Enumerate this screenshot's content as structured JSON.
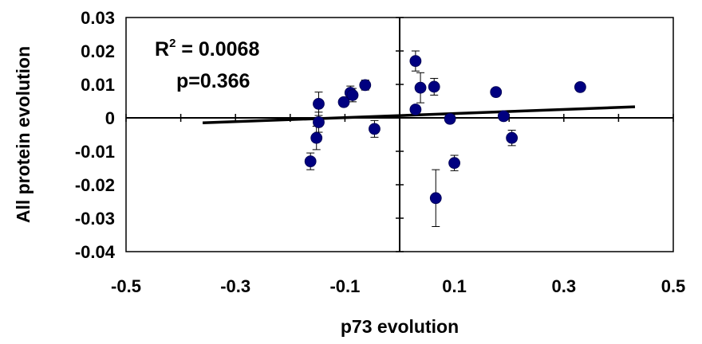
{
  "chart_data": {
    "type": "scatter",
    "xlabel": "p73 evolution",
    "ylabel": "All protein evolution",
    "xlim": [
      -0.5,
      0.5
    ],
    "ylim": [
      -0.04,
      0.03
    ],
    "x_ticks": [
      "-0.5",
      "-0.3",
      "-0.1",
      "0.1",
      "0.3",
      "0.5"
    ],
    "y_ticks": [
      "0.03",
      "0.02",
      "0.01",
      "0",
      "-0.01",
      "-0.02",
      "-0.03",
      "-0.04"
    ],
    "x_tick_values": [
      -0.5,
      -0.3,
      -0.1,
      0.1,
      0.3,
      0.5
    ],
    "y_tick_values": [
      0.03,
      0.02,
      0.01,
      0,
      -0.01,
      -0.02,
      -0.03,
      -0.04
    ],
    "annotation_r2_prefix": "R",
    "annotation_r2_sup": "2",
    "annotation_r2_value": " = 0.0068",
    "annotation_p": "p=0.366",
    "grid": false,
    "point_color": "#000080",
    "trendline": {
      "x": [
        -0.36,
        0.43
      ],
      "y": [
        -0.0015,
        0.0033
      ]
    },
    "points": [
      {
        "x": -0.163,
        "y": -0.013,
        "err": 0.0025
      },
      {
        "x": -0.152,
        "y": -0.006,
        "err": 0.0035
      },
      {
        "x": -0.148,
        "y": 0.0042,
        "err": 0.0035
      },
      {
        "x": -0.148,
        "y": -0.0013,
        "err": 0.003
      },
      {
        "x": -0.102,
        "y": 0.0047,
        "err": 0.0012
      },
      {
        "x": -0.09,
        "y": 0.0075,
        "err": 0.002
      },
      {
        "x": -0.086,
        "y": 0.0068,
        "err": 0.002
      },
      {
        "x": -0.063,
        "y": 0.0098,
        "err": 0.0015
      },
      {
        "x": -0.046,
        "y": -0.0033,
        "err": 0.0025
      },
      {
        "x": 0.029,
        "y": 0.0025,
        "err": 0.0012
      },
      {
        "x": 0.029,
        "y": 0.017,
        "err": 0.003
      },
      {
        "x": 0.038,
        "y": 0.009,
        "err": 0.0045
      },
      {
        "x": 0.063,
        "y": 0.0093,
        "err": 0.0025
      },
      {
        "x": 0.066,
        "y": -0.024,
        "err": 0.0085
      },
      {
        "x": 0.092,
        "y": -0.0003,
        "err": 0.0012
      },
      {
        "x": 0.1,
        "y": -0.0135,
        "err": 0.0023
      },
      {
        "x": 0.176,
        "y": 0.0077,
        "err": 0.0012
      },
      {
        "x": 0.19,
        "y": 0.0005,
        "err": 0.0012
      },
      {
        "x": 0.205,
        "y": -0.006,
        "err": 0.0023
      },
      {
        "x": 0.33,
        "y": 0.0092,
        "err": 0.0012
      }
    ]
  }
}
